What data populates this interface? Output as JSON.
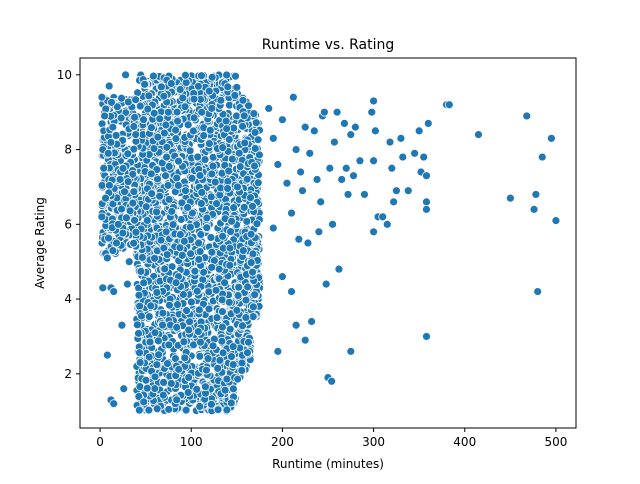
{
  "chart_data": {
    "type": "scatter",
    "title": "Runtime vs. Rating",
    "xlabel": "Runtime (minutes)",
    "ylabel": "Average Rating",
    "xlim": [
      -22,
      522
    ],
    "ylim": [
      0.55,
      10.45
    ],
    "xticks": [
      0,
      100,
      200,
      300,
      400,
      500
    ],
    "yticks": [
      2,
      4,
      6,
      8,
      10
    ],
    "grid": false,
    "marker_color": "#1f77b4",
    "marker_edge": "#ffffff",
    "dense_region": {
      "description_points_generated": true,
      "x_range": [
        40,
        175
      ],
      "y_range": [
        1.0,
        10.0
      ]
    },
    "points": [
      {
        "x": 2,
        "y": 9.4
      },
      {
        "x": 5,
        "y": 8.9
      },
      {
        "x": 3,
        "y": 8.0
      },
      {
        "x": 4,
        "y": 7.5
      },
      {
        "x": 6,
        "y": 6.7
      },
      {
        "x": 2,
        "y": 6.2
      },
      {
        "x": 10,
        "y": 9.7
      },
      {
        "x": 8,
        "y": 5.1
      },
      {
        "x": 12,
        "y": 4.3
      },
      {
        "x": 3,
        "y": 4.3
      },
      {
        "x": 15,
        "y": 4.2
      },
      {
        "x": 8,
        "y": 2.5
      },
      {
        "x": 12,
        "y": 1.3
      },
      {
        "x": 15,
        "y": 1.2
      },
      {
        "x": 24,
        "y": 3.3
      },
      {
        "x": 26,
        "y": 1.6
      },
      {
        "x": 30,
        "y": 4.4
      },
      {
        "x": 28,
        "y": 10.0
      },
      {
        "x": 18,
        "y": 5.5
      },
      {
        "x": 22,
        "y": 7.2
      },
      {
        "x": 14,
        "y": 8.6
      },
      {
        "x": 20,
        "y": 6.0
      },
      {
        "x": 32,
        "y": 5.0
      },
      {
        "x": 9,
        "y": 7.9
      },
      {
        "x": 185,
        "y": 9.1
      },
      {
        "x": 190,
        "y": 8.3
      },
      {
        "x": 195,
        "y": 7.6
      },
      {
        "x": 200,
        "y": 8.8
      },
      {
        "x": 205,
        "y": 7.1
      },
      {
        "x": 210,
        "y": 6.3
      },
      {
        "x": 212,
        "y": 9.4
      },
      {
        "x": 215,
        "y": 8.0
      },
      {
        "x": 218,
        "y": 5.6
      },
      {
        "x": 220,
        "y": 7.4
      },
      {
        "x": 222,
        "y": 6.9
      },
      {
        "x": 225,
        "y": 8.6
      },
      {
        "x": 228,
        "y": 5.5
      },
      {
        "x": 230,
        "y": 7.9
      },
      {
        "x": 232,
        "y": 3.4
      },
      {
        "x": 235,
        "y": 8.5
      },
      {
        "x": 238,
        "y": 7.2
      },
      {
        "x": 240,
        "y": 5.8
      },
      {
        "x": 242,
        "y": 6.6
      },
      {
        "x": 244,
        "y": 8.9
      },
      {
        "x": 246,
        "y": 9.0
      },
      {
        "x": 248,
        "y": 4.4
      },
      {
        "x": 250,
        "y": 1.9
      },
      {
        "x": 252,
        "y": 7.5
      },
      {
        "x": 254,
        "y": 1.8
      },
      {
        "x": 255,
        "y": 6.0
      },
      {
        "x": 257,
        "y": 8.2
      },
      {
        "x": 260,
        "y": 9.0
      },
      {
        "x": 262,
        "y": 4.8
      },
      {
        "x": 265,
        "y": 7.2
      },
      {
        "x": 268,
        "y": 8.7
      },
      {
        "x": 270,
        "y": 7.5
      },
      {
        "x": 272,
        "y": 6.8
      },
      {
        "x": 275,
        "y": 8.4
      },
      {
        "x": 278,
        "y": 7.3
      },
      {
        "x": 280,
        "y": 8.6
      },
      {
        "x": 285,
        "y": 7.7
      },
      {
        "x": 290,
        "y": 6.8
      },
      {
        "x": 298,
        "y": 9.0
      },
      {
        "x": 300,
        "y": 9.3
      },
      {
        "x": 300,
        "y": 7.7
      },
      {
        "x": 300,
        "y": 5.8
      },
      {
        "x": 302,
        "y": 8.5
      },
      {
        "x": 305,
        "y": 6.2
      },
      {
        "x": 310,
        "y": 6.2
      },
      {
        "x": 315,
        "y": 6.0
      },
      {
        "x": 318,
        "y": 8.2
      },
      {
        "x": 320,
        "y": 7.5
      },
      {
        "x": 322,
        "y": 6.6
      },
      {
        "x": 325,
        "y": 6.9
      },
      {
        "x": 330,
        "y": 8.3
      },
      {
        "x": 332,
        "y": 7.8
      },
      {
        "x": 338,
        "y": 6.9
      },
      {
        "x": 345,
        "y": 7.9
      },
      {
        "x": 350,
        "y": 8.5
      },
      {
        "x": 352,
        "y": 7.4
      },
      {
        "x": 355,
        "y": 7.8
      },
      {
        "x": 358,
        "y": 7.3
      },
      {
        "x": 358,
        "y": 6.6
      },
      {
        "x": 358,
        "y": 6.4
      },
      {
        "x": 360,
        "y": 8.7
      },
      {
        "x": 358,
        "y": 3.0
      },
      {
        "x": 380,
        "y": 9.2
      },
      {
        "x": 383,
        "y": 9.2
      },
      {
        "x": 415,
        "y": 8.4
      },
      {
        "x": 450,
        "y": 6.7
      },
      {
        "x": 468,
        "y": 8.9
      },
      {
        "x": 476,
        "y": 6.4
      },
      {
        "x": 478,
        "y": 6.8
      },
      {
        "x": 480,
        "y": 4.2
      },
      {
        "x": 485,
        "y": 7.8
      },
      {
        "x": 495,
        "y": 8.3
      },
      {
        "x": 500,
        "y": 6.1
      },
      {
        "x": 275,
        "y": 2.6
      },
      {
        "x": 195,
        "y": 2.6
      },
      {
        "x": 210,
        "y": 4.2
      },
      {
        "x": 215,
        "y": 3.3
      },
      {
        "x": 190,
        "y": 5.9
      },
      {
        "x": 200,
        "y": 4.6
      },
      {
        "x": 225,
        "y": 2.9
      }
    ]
  }
}
